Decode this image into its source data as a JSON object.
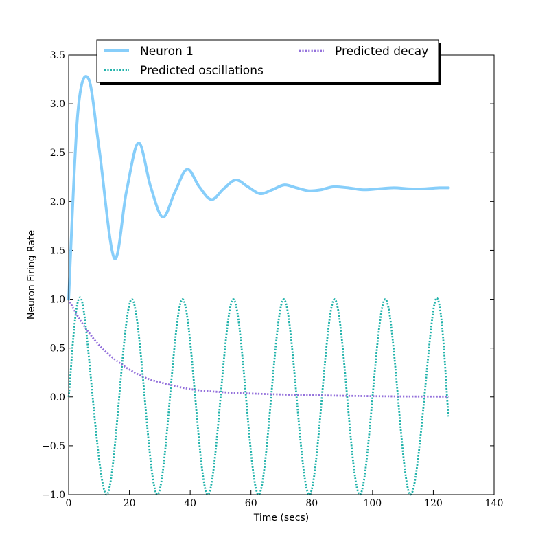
{
  "chart_data": {
    "type": "line",
    "xlabel": "Time (secs)",
    "ylabel": "Neuron Firing Rate",
    "xlim": [
      0,
      140
    ],
    "ylim": [
      -1.0,
      3.5
    ],
    "x_ticks": [
      0,
      20,
      40,
      60,
      80,
      100,
      120,
      140
    ],
    "x_tick_labels": [
      "0",
      "20",
      "40",
      "60",
      "80",
      "100",
      "120",
      "140"
    ],
    "y_ticks": [
      -1.0,
      -0.5,
      0.0,
      0.5,
      1.0,
      1.5,
      2.0,
      2.5,
      3.0,
      3.5
    ],
    "y_tick_labels": [
      "−1.0",
      "−0.5",
      "0.0",
      "0.5",
      "1.0",
      "1.5",
      "2.0",
      "2.5",
      "3.0",
      "3.5"
    ],
    "grid": false,
    "legend": {
      "placement": "top-center",
      "columns": 2
    },
    "series": [
      {
        "name": "Neuron 1",
        "color": "#87CEFA",
        "style": "solid",
        "x": [
          0,
          3,
          6.5,
          10,
          15,
          19,
          23,
          27,
          31,
          35,
          39,
          43,
          47,
          51,
          55,
          59,
          63,
          67,
          71,
          75,
          79,
          83,
          87,
          92,
          97,
          102,
          107,
          112,
          117,
          122,
          125
        ],
        "y": [
          1.0,
          2.9,
          3.26,
          2.55,
          1.42,
          2.1,
          2.6,
          2.15,
          1.84,
          2.1,
          2.33,
          2.15,
          2.02,
          2.13,
          2.22,
          2.15,
          2.08,
          2.12,
          2.17,
          2.14,
          2.11,
          2.12,
          2.15,
          2.14,
          2.12,
          2.13,
          2.14,
          2.13,
          2.13,
          2.14,
          2.14
        ]
      },
      {
        "name": "Predicted oscillations",
        "color": "#20B2AA",
        "style": "dotted",
        "x": [
          0,
          4.2,
          12.5,
          20.8,
          29.2,
          37.5,
          45.8,
          54.2,
          62.5,
          70.8,
          79.2,
          87.5,
          95.8,
          104.2,
          112.5,
          120.8,
          125
        ],
        "y": [
          0.0,
          1.0,
          -1.0,
          1.0,
          -1.0,
          1.0,
          -1.0,
          1.0,
          -1.0,
          1.0,
          -1.0,
          1.0,
          -1.0,
          1.0,
          -1.0,
          1.0,
          -0.2
        ]
      },
      {
        "name": "Predicted decay",
        "color": "#9370DB",
        "style": "dotted",
        "x": [
          0,
          2,
          5,
          10,
          15,
          20,
          25,
          30,
          40,
          50,
          60,
          70,
          80,
          90,
          100,
          110,
          125
        ],
        "y": [
          1.0,
          0.88,
          0.73,
          0.53,
          0.39,
          0.28,
          0.2,
          0.15,
          0.08,
          0.05,
          0.035,
          0.025,
          0.018,
          0.012,
          0.008,
          0.005,
          0.003
        ]
      }
    ]
  }
}
